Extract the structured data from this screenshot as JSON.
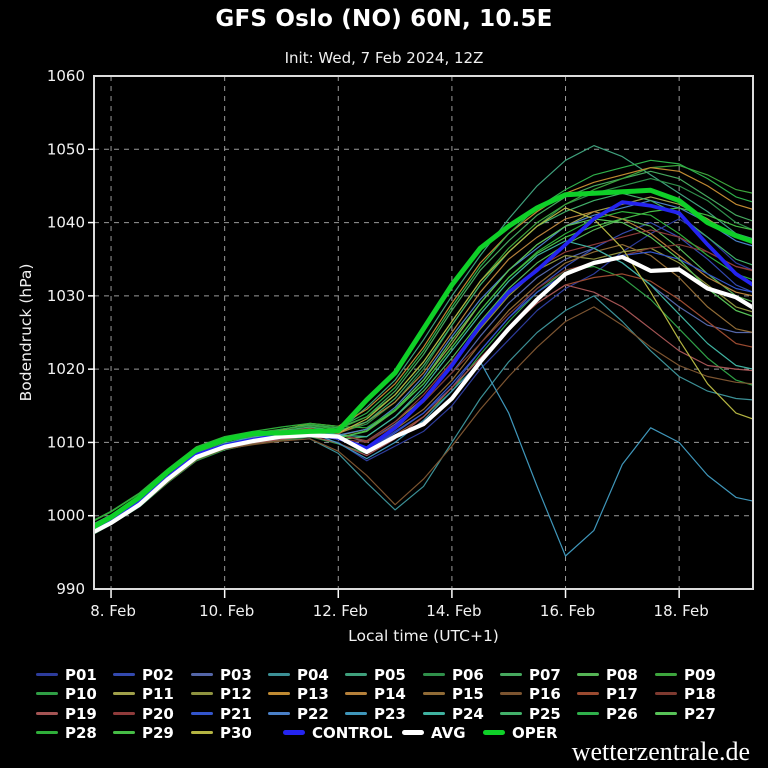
{
  "header": {
    "title": "GFS Oslo (NO) 60N, 10.5E",
    "subtitle": "Init: Wed, 7 Feb 2024, 12Z"
  },
  "watermark": "wetterzentrale.de",
  "chart_data": {
    "type": "line",
    "title": "GFS Oslo (NO) 60N, 10.5E",
    "subtitle": "Init: Wed, 7 Feb 2024, 12Z",
    "xlabel": "Local time (UTC+1)",
    "ylabel": "Bodendruck (hPa)",
    "ylim": [
      990,
      1060
    ],
    "x_range_days_feb": [
      7.7,
      19.3
    ],
    "grid": "dashed",
    "legend_position": "bottom",
    "y_ticks": [
      990,
      1000,
      1010,
      1020,
      1030,
      1040,
      1050,
      1060
    ],
    "y_gridlines": [
      1000,
      1010,
      1020,
      1030,
      1040,
      1050
    ],
    "x_ticks": [
      {
        "day": 8,
        "label": "8. Feb"
      },
      {
        "day": 10,
        "label": "10. Feb"
      },
      {
        "day": 12,
        "label": "12. Feb"
      },
      {
        "day": 14,
        "label": "14. Feb"
      },
      {
        "day": 16,
        "label": "16. Feb"
      },
      {
        "day": 18,
        "label": "18. Feb"
      }
    ],
    "x_days": [
      7.7,
      8,
      8.5,
      9,
      9.5,
      10,
      10.5,
      11,
      11.5,
      12,
      12.5,
      13,
      13.5,
      14,
      14.5,
      15,
      15.5,
      16,
      16.5,
      17,
      17.5,
      18,
      18.5,
      19,
      19.3
    ],
    "series": [
      {
        "name": "P01",
        "type": "member",
        "color": "#2d3c9c",
        "values": [
          997.5,
          998.8,
          1001.2,
          1004.5,
          1007.5,
          1009,
          1009.8,
          1010.5,
          1010.8,
          1010,
          1007.5,
          1009.5,
          1011.5,
          1015,
          1020,
          1024,
          1028,
          1031,
          1033,
          1036,
          1038.5,
          1040.5,
          1038,
          1034.5,
          1033.5
        ]
      },
      {
        "name": "P02",
        "type": "member",
        "color": "#3349ae",
        "values": [
          998.2,
          999.4,
          1002,
          1005.2,
          1008.2,
          1009.7,
          1010.5,
          1011,
          1011.5,
          1010.5,
          1009,
          1011.5,
          1014,
          1017.5,
          1022.5,
          1027,
          1031,
          1034,
          1036.5,
          1038.5,
          1040,
          1038,
          1035,
          1031.5,
          1030.5
        ]
      },
      {
        "name": "P03",
        "type": "member",
        "color": "#5466a8",
        "values": [
          998.8,
          1000,
          1002.5,
          1005.8,
          1008.8,
          1010.2,
          1010.8,
          1011.5,
          1012,
          1011.2,
          1010,
          1012.5,
          1015.5,
          1019.5,
          1024.5,
          1029,
          1032.5,
          1035,
          1036.5,
          1034.5,
          1031.5,
          1028.5,
          1026,
          1025,
          1025
        ]
      },
      {
        "name": "P04",
        "type": "member",
        "color": "#3c9096",
        "values": [
          997.8,
          999,
          1001.5,
          1004.8,
          1007.8,
          1009.3,
          1009.8,
          1010.3,
          1010.5,
          1008.5,
          1004.5,
          1000.8,
          1004,
          1010,
          1016,
          1021,
          1025,
          1028,
          1030,
          1026.5,
          1022.5,
          1019,
          1017,
          1016,
          1015.8
        ]
      },
      {
        "name": "P05",
        "type": "member",
        "color": "#3fa07c",
        "values": [
          998.8,
          1000,
          1002.5,
          1005.8,
          1008.8,
          1010.3,
          1011,
          1011.5,
          1012,
          1011.6,
          1014.8,
          1018.5,
          1024,
          1030,
          1035.5,
          1040.5,
          1045,
          1048.5,
          1050.5,
          1049,
          1046.5,
          1044,
          1041.5,
          1038.5,
          1037.8
        ]
      },
      {
        "name": "P06",
        "type": "member",
        "color": "#2f8f4a",
        "values": [
          998.3,
          999.5,
          1002,
          1005.3,
          1008.3,
          1009.8,
          1010.6,
          1011.2,
          1011.8,
          1011.3,
          1012.5,
          1015.5,
          1020,
          1026,
          1031.5,
          1036,
          1039.5,
          1042.5,
          1044,
          1045,
          1046,
          1045,
          1043,
          1040,
          1039
        ]
      },
      {
        "name": "P07",
        "type": "member",
        "color": "#46a85e",
        "values": [
          998.8,
          1000,
          1002.6,
          1006,
          1009,
          1010.4,
          1011,
          1011.8,
          1012.4,
          1012,
          1013.5,
          1017,
          1022,
          1028,
          1033.5,
          1037.5,
          1041,
          1043.5,
          1045,
          1046,
          1047,
          1046,
          1043.5,
          1041,
          1040.2
        ]
      },
      {
        "name": "P08",
        "type": "member",
        "color": "#55b455",
        "values": [
          997.8,
          999,
          1001.5,
          1004.8,
          1007.8,
          1009.4,
          1010.2,
          1010.8,
          1011.3,
          1010.4,
          1010.8,
          1013.5,
          1017,
          1021.5,
          1026.5,
          1031,
          1034.5,
          1037,
          1039,
          1040.5,
          1039.5,
          1036.5,
          1033,
          1030,
          1029.2
        ]
      },
      {
        "name": "P09",
        "type": "member",
        "color": "#3da53d",
        "values": [
          999.3,
          1000.5,
          1003,
          1006.3,
          1009.3,
          1010.7,
          1011.3,
          1011.8,
          1012.3,
          1011.8,
          1013.5,
          1016.5,
          1021,
          1026.5,
          1032,
          1036.5,
          1040,
          1042.5,
          1044.5,
          1046,
          1047.5,
          1047.8,
          1046.5,
          1044.5,
          1044
        ]
      },
      {
        "name": "P10",
        "type": "member",
        "color": "#2f9e45",
        "values": [
          997.5,
          998.8,
          1001.2,
          1004.5,
          1007.5,
          1009,
          1009.8,
          1010.3,
          1010.8,
          1009.8,
          1008.5,
          1011,
          1013.5,
          1017,
          1022,
          1026.5,
          1030.5,
          1033.5,
          1034,
          1032.5,
          1029.5,
          1025.5,
          1021.5,
          1018.5,
          1017.8
        ]
      },
      {
        "name": "P11",
        "type": "member",
        "color": "#a0a04a",
        "values": [
          998.2,
          999.4,
          1002,
          1005.2,
          1008.2,
          1009.7,
          1010.4,
          1011,
          1011.4,
          1010.9,
          1011.8,
          1014.5,
          1018.5,
          1023.5,
          1029,
          1033.5,
          1037,
          1039.5,
          1041.5,
          1042.5,
          1043.5,
          1042.5,
          1040.5,
          1038,
          1037.2
        ]
      },
      {
        "name": "P12",
        "type": "member",
        "color": "#8f933f",
        "values": [
          998.8,
          1000,
          1002.5,
          1005.8,
          1008.8,
          1010.2,
          1010.9,
          1011.4,
          1011.9,
          1011,
          1010.2,
          1012.8,
          1016,
          1020.5,
          1025.5,
          1030,
          1033.5,
          1035.5,
          1035,
          1036,
          1036.5,
          1034.5,
          1031.5,
          1028.5,
          1027.8
        ]
      },
      {
        "name": "P13",
        "type": "member",
        "color": "#c08a32",
        "values": [
          998.3,
          999.5,
          1002.1,
          1005.4,
          1008.6,
          1010.1,
          1011.1,
          1011.7,
          1012.6,
          1012.2,
          1014.5,
          1018,
          1023,
          1029,
          1034.5,
          1038.5,
          1041.5,
          1044,
          1045.5,
          1046.5,
          1047.5,
          1047,
          1045,
          1042.5,
          1041.8
        ]
      },
      {
        "name": "P14",
        "type": "member",
        "color": "#b5803a",
        "values": [
          997.8,
          999,
          1001.5,
          1004.8,
          1008,
          1009.5,
          1010.5,
          1011,
          1011.7,
          1011.2,
          1012.8,
          1015.5,
          1019.5,
          1025,
          1030.5,
          1035,
          1038,
          1040.5,
          1041.5,
          1040.5,
          1038.5,
          1035.5,
          1032.5,
          1030.5,
          1030
        ]
      },
      {
        "name": "P15",
        "type": "member",
        "color": "#906b36",
        "values": [
          998.3,
          999.5,
          1002,
          1005.3,
          1008.3,
          1009.8,
          1010.4,
          1010.9,
          1011.3,
          1010.4,
          1009.3,
          1011.8,
          1014.5,
          1018.5,
          1023.5,
          1028,
          1031.5,
          1034.5,
          1036,
          1037,
          1035.5,
          1032.5,
          1028.5,
          1025.5,
          1025
        ]
      },
      {
        "name": "P16",
        "type": "member",
        "color": "#7c5430",
        "values": [
          997.6,
          998.8,
          1001.3,
          1004.6,
          1007.6,
          1009.1,
          1009.7,
          1010.2,
          1010.5,
          1008.8,
          1005.5,
          1001.5,
          1005,
          1009.5,
          1014.5,
          1019,
          1023,
          1026.5,
          1028.5,
          1026,
          1023,
          1020.5,
          1019,
          1018.2,
          1018
        ]
      },
      {
        "name": "P17",
        "type": "member",
        "color": "#9a4a30",
        "values": [
          998.8,
          1000,
          1002.5,
          1005.8,
          1008.8,
          1010.2,
          1010.7,
          1011.1,
          1011.5,
          1010.6,
          1009,
          1011,
          1013.5,
          1017.5,
          1021.5,
          1025.5,
          1029,
          1031.5,
          1032.5,
          1033,
          1032,
          1029.5,
          1026.5,
          1023.5,
          1023
        ]
      },
      {
        "name": "P18",
        "type": "member",
        "color": "#7e3a30",
        "values": [
          998.2,
          999.4,
          1001.9,
          1005.2,
          1008.2,
          1009.7,
          1010.3,
          1010.8,
          1011.3,
          1010.5,
          1010,
          1012.3,
          1015.5,
          1019.5,
          1023.5,
          1027.5,
          1031,
          1033.5,
          1034.5,
          1035.5,
          1036.5,
          1037,
          1036,
          1034,
          1033.4
        ]
      },
      {
        "name": "P19",
        "type": "member",
        "color": "#a45454",
        "values": [
          997.7,
          998.9,
          1001.4,
          1004.7,
          1007.7,
          1009.2,
          1009.9,
          1010.4,
          1010.9,
          1009.9,
          1008.2,
          1010.5,
          1013.5,
          1017.5,
          1021.5,
          1025.5,
          1029,
          1031.5,
          1030.5,
          1028.5,
          1025.5,
          1022.5,
          1020.5,
          1020,
          1019.8
        ]
      },
      {
        "name": "P20",
        "type": "member",
        "color": "#8f3b3b",
        "values": [
          998.9,
          1000.1,
          1002.6,
          1005.9,
          1008.9,
          1010.3,
          1011,
          1011.5,
          1012,
          1011.1,
          1010.2,
          1012.8,
          1016.5,
          1021,
          1026,
          1030.5,
          1033.8,
          1036,
          1037,
          1038,
          1039,
          1038,
          1036,
          1034,
          1033.5
        ]
      },
      {
        "name": "P21",
        "type": "member",
        "color": "#3355cc",
        "values": [
          998.3,
          999.5,
          1002,
          1005.3,
          1008.3,
          1009.8,
          1010.5,
          1011,
          1011.4,
          1010.5,
          1008.8,
          1011.3,
          1014,
          1018,
          1022.5,
          1027,
          1030.5,
          1033,
          1034.5,
          1035.5,
          1036,
          1035,
          1033,
          1031,
          1030.5
        ]
      },
      {
        "name": "P22",
        "type": "member",
        "color": "#4a80c8",
        "values": [
          997.8,
          999,
          1001.5,
          1004.8,
          1008,
          1009.5,
          1010.3,
          1010.8,
          1011.6,
          1011,
          1011.8,
          1014.8,
          1019,
          1024.5,
          1029.5,
          1033.5,
          1036.5,
          1039.5,
          1041,
          1042,
          1043,
          1042,
          1040,
          1037.5,
          1036.8
        ]
      },
      {
        "name": "P23",
        "type": "member",
        "color": "#3f96ba",
        "values": [
          998.9,
          1000.1,
          1002.6,
          1005.9,
          1008.9,
          1010.3,
          1010.6,
          1011,
          1011.4,
          1009.9,
          1007.8,
          1010,
          1013,
          1017,
          1021,
          1014,
          1004,
          994.5,
          998,
          1007,
          1012,
          1010,
          1005.5,
          1002.5,
          1002
        ]
      },
      {
        "name": "P24",
        "type": "member",
        "color": "#3fb2a0",
        "values": [
          998.4,
          999.6,
          1002.1,
          1005.4,
          1008.4,
          1009.9,
          1010.7,
          1011.3,
          1011.8,
          1011,
          1010.8,
          1013.5,
          1017.5,
          1022.5,
          1027.5,
          1032,
          1035.5,
          1037.5,
          1036.5,
          1034.5,
          1031.5,
          1027.5,
          1023.5,
          1020.5,
          1020
        ]
      },
      {
        "name": "P25",
        "type": "member",
        "color": "#42b06a",
        "values": [
          998.9,
          1000.1,
          1002.6,
          1005.9,
          1008.9,
          1010.3,
          1011,
          1011.6,
          1012.1,
          1011.6,
          1012.8,
          1016,
          1020.5,
          1026,
          1031.5,
          1036,
          1039.5,
          1041.5,
          1043,
          1044,
          1043,
          1041,
          1038,
          1035,
          1034.2
        ]
      },
      {
        "name": "P26",
        "type": "member",
        "color": "#2fb04b",
        "values": [
          998.4,
          999.6,
          1002.1,
          1005.4,
          1008.6,
          1010.1,
          1010.9,
          1011.8,
          1012.4,
          1012,
          1014,
          1017.5,
          1022.5,
          1028.5,
          1034,
          1038.5,
          1042,
          1044.5,
          1046.5,
          1047.5,
          1048.5,
          1048,
          1046,
          1043.5,
          1042.8
        ]
      },
      {
        "name": "P27",
        "type": "member",
        "color": "#57c257",
        "values": [
          997.7,
          998.9,
          1001.4,
          1004.7,
          1007.7,
          1009.2,
          1010,
          1010.6,
          1011.1,
          1010.6,
          1011.6,
          1014.5,
          1018.5,
          1024,
          1029,
          1033.5,
          1037,
          1039.5,
          1040.5,
          1040,
          1038,
          1035,
          1031,
          1028,
          1027.2
        ]
      },
      {
        "name": "P28",
        "type": "member",
        "color": "#2fae3a",
        "values": [
          999.4,
          1000.6,
          1003.1,
          1006.4,
          1009.4,
          1010.8,
          1011.5,
          1012.1,
          1012.6,
          1012.2,
          1012,
          1014.5,
          1018,
          1023,
          1028,
          1032.5,
          1036,
          1038.5,
          1040.5,
          1041.5,
          1041,
          1038.5,
          1035.5,
          1033,
          1032.2
        ]
      },
      {
        "name": "P29",
        "type": "member",
        "color": "#46bc46",
        "values": [
          998.3,
          999.5,
          1002,
          1005.3,
          1008.3,
          1009.8,
          1010.4,
          1010.9,
          1011.4,
          1010.6,
          1011.5,
          1014.3,
          1018,
          1023,
          1028,
          1032.5,
          1035.8,
          1038,
          1039.5,
          1040.5,
          1041.5,
          1042,
          1041,
          1039.5,
          1039
        ]
      },
      {
        "name": "P30",
        "type": "member",
        "color": "#b4b442",
        "values": [
          997.9,
          999.1,
          1001.6,
          1004.9,
          1008.1,
          1009.6,
          1010.6,
          1011.1,
          1011.8,
          1011.3,
          1013.2,
          1016.5,
          1021,
          1026.5,
          1032,
          1036,
          1039.5,
          1042,
          1040.5,
          1036.5,
          1030.5,
          1024,
          1018,
          1014,
          1013.2
        ]
      },
      {
        "name": "CONTROL",
        "type": "control",
        "color": "#2424f0",
        "values": [
          998.2,
          999.3,
          1001.8,
          1005.2,
          1008.3,
          1009.6,
          1010.4,
          1011,
          1011.2,
          1010.6,
          1009.2,
          1012,
          1015.8,
          1020.5,
          1026,
          1030.5,
          1033.5,
          1037,
          1040.5,
          1042.8,
          1042.3,
          1041.3,
          1037,
          1033,
          1031.5
        ]
      },
      {
        "name": "AVG",
        "type": "avg",
        "color": "#ffffff",
        "values": [
          997.8,
          999,
          1001.5,
          1005,
          1008,
          1009.4,
          1010.2,
          1010.8,
          1011,
          1010.8,
          1008.7,
          1010.8,
          1012.5,
          1016,
          1021,
          1025.5,
          1029.5,
          1033,
          1034.5,
          1035.3,
          1033.4,
          1033.6,
          1031,
          1029.8,
          1028.4
        ]
      },
      {
        "name": "OPER",
        "type": "oper",
        "color": "#0fd028",
        "values": [
          998.5,
          999.8,
          1002.5,
          1006,
          1009,
          1010.4,
          1011.2,
          1011.3,
          1011.5,
          1011.6,
          1015.8,
          1019.5,
          1025.5,
          1031.5,
          1036.5,
          1039.5,
          1042,
          1043.8,
          1044,
          1044.2,
          1044.4,
          1043,
          1040,
          1038.2,
          1037.4
        ]
      }
    ]
  },
  "style_colors": {
    "background": "#000000",
    "text": "#f2f2f2",
    "grid": "#9a9a9a",
    "frame": "#dcdcdc"
  }
}
